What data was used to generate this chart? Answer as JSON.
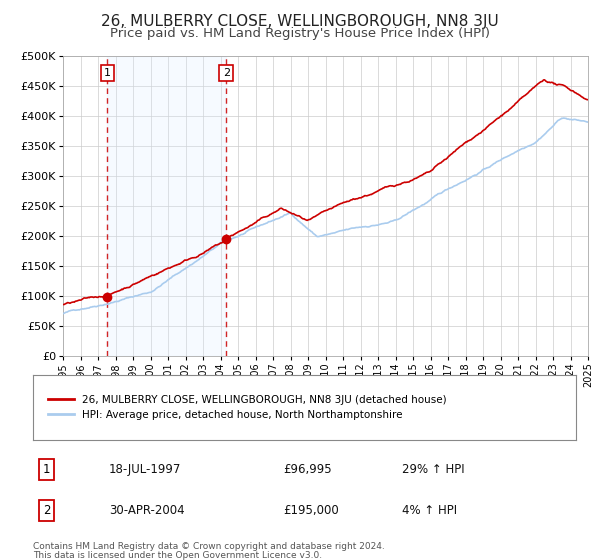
{
  "title": "26, MULBERRY CLOSE, WELLINGBOROUGH, NN8 3JU",
  "subtitle": "Price paid vs. HM Land Registry's House Price Index (HPI)",
  "title_fontsize": 11,
  "subtitle_fontsize": 9.5,
  "background_color": "#ffffff",
  "plot_bg_color": "#ffffff",
  "grid_color": "#cccccc",
  "red_color": "#cc0000",
  "blue_color": "#aaccee",
  "shaded_color": "#ddeeff",
  "sale1_x": 1997.54,
  "sale1_y": 96995,
  "sale2_x": 2004.33,
  "sale2_y": 195000,
  "xmin": 1995,
  "xmax": 2025,
  "ymin": 0,
  "ymax": 500000,
  "yticks": [
    0,
    50000,
    100000,
    150000,
    200000,
    250000,
    300000,
    350000,
    400000,
    450000,
    500000
  ],
  "ytick_labels": [
    "£0",
    "£50K",
    "£100K",
    "£150K",
    "£200K",
    "£250K",
    "£300K",
    "£350K",
    "£400K",
    "£450K",
    "£500K"
  ],
  "legend_red_label": "26, MULBERRY CLOSE, WELLINGBOROUGH, NN8 3JU (detached house)",
  "legend_blue_label": "HPI: Average price, detached house, North Northamptonshire",
  "sale1_label": "1",
  "sale2_label": "2",
  "sale1_date": "18-JUL-1997",
  "sale1_price": "£96,995",
  "sale1_hpi": "29% ↑ HPI",
  "sale2_date": "30-APR-2004",
  "sale2_price": "£195,000",
  "sale2_hpi": "4% ↑ HPI",
  "footer1": "Contains HM Land Registry data © Crown copyright and database right 2024.",
  "footer2": "This data is licensed under the Open Government Licence v3.0."
}
